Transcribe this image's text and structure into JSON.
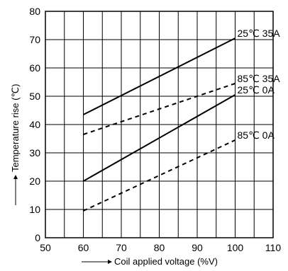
{
  "chart_data": {
    "type": "line",
    "xlabel": "Coil applied voltage (%V)",
    "ylabel": "Temperature rise (℃)",
    "xlim": [
      50,
      110
    ],
    "ylim": [
      0,
      80
    ],
    "x_ticks": [
      50,
      60,
      70,
      80,
      90,
      100,
      110
    ],
    "y_ticks": [
      0,
      10,
      20,
      30,
      40,
      50,
      60,
      70,
      80
    ],
    "grid": true,
    "series": [
      {
        "name": "25℃ 35A",
        "style": "solid",
        "x": [
          60,
          100
        ],
        "y": [
          43.5,
          70.5
        ]
      },
      {
        "name": "85℃ 35A",
        "style": "dashed",
        "x": [
          60,
          100
        ],
        "y": [
          36.5,
          54.5
        ]
      },
      {
        "name": "25℃ 0A",
        "style": "solid",
        "x": [
          60,
          100
        ],
        "y": [
          20,
          50.5
        ]
      },
      {
        "name": "85℃ 0A",
        "style": "dashed",
        "x": [
          60,
          100
        ],
        "y": [
          9.5,
          34.5
        ]
      }
    ]
  }
}
